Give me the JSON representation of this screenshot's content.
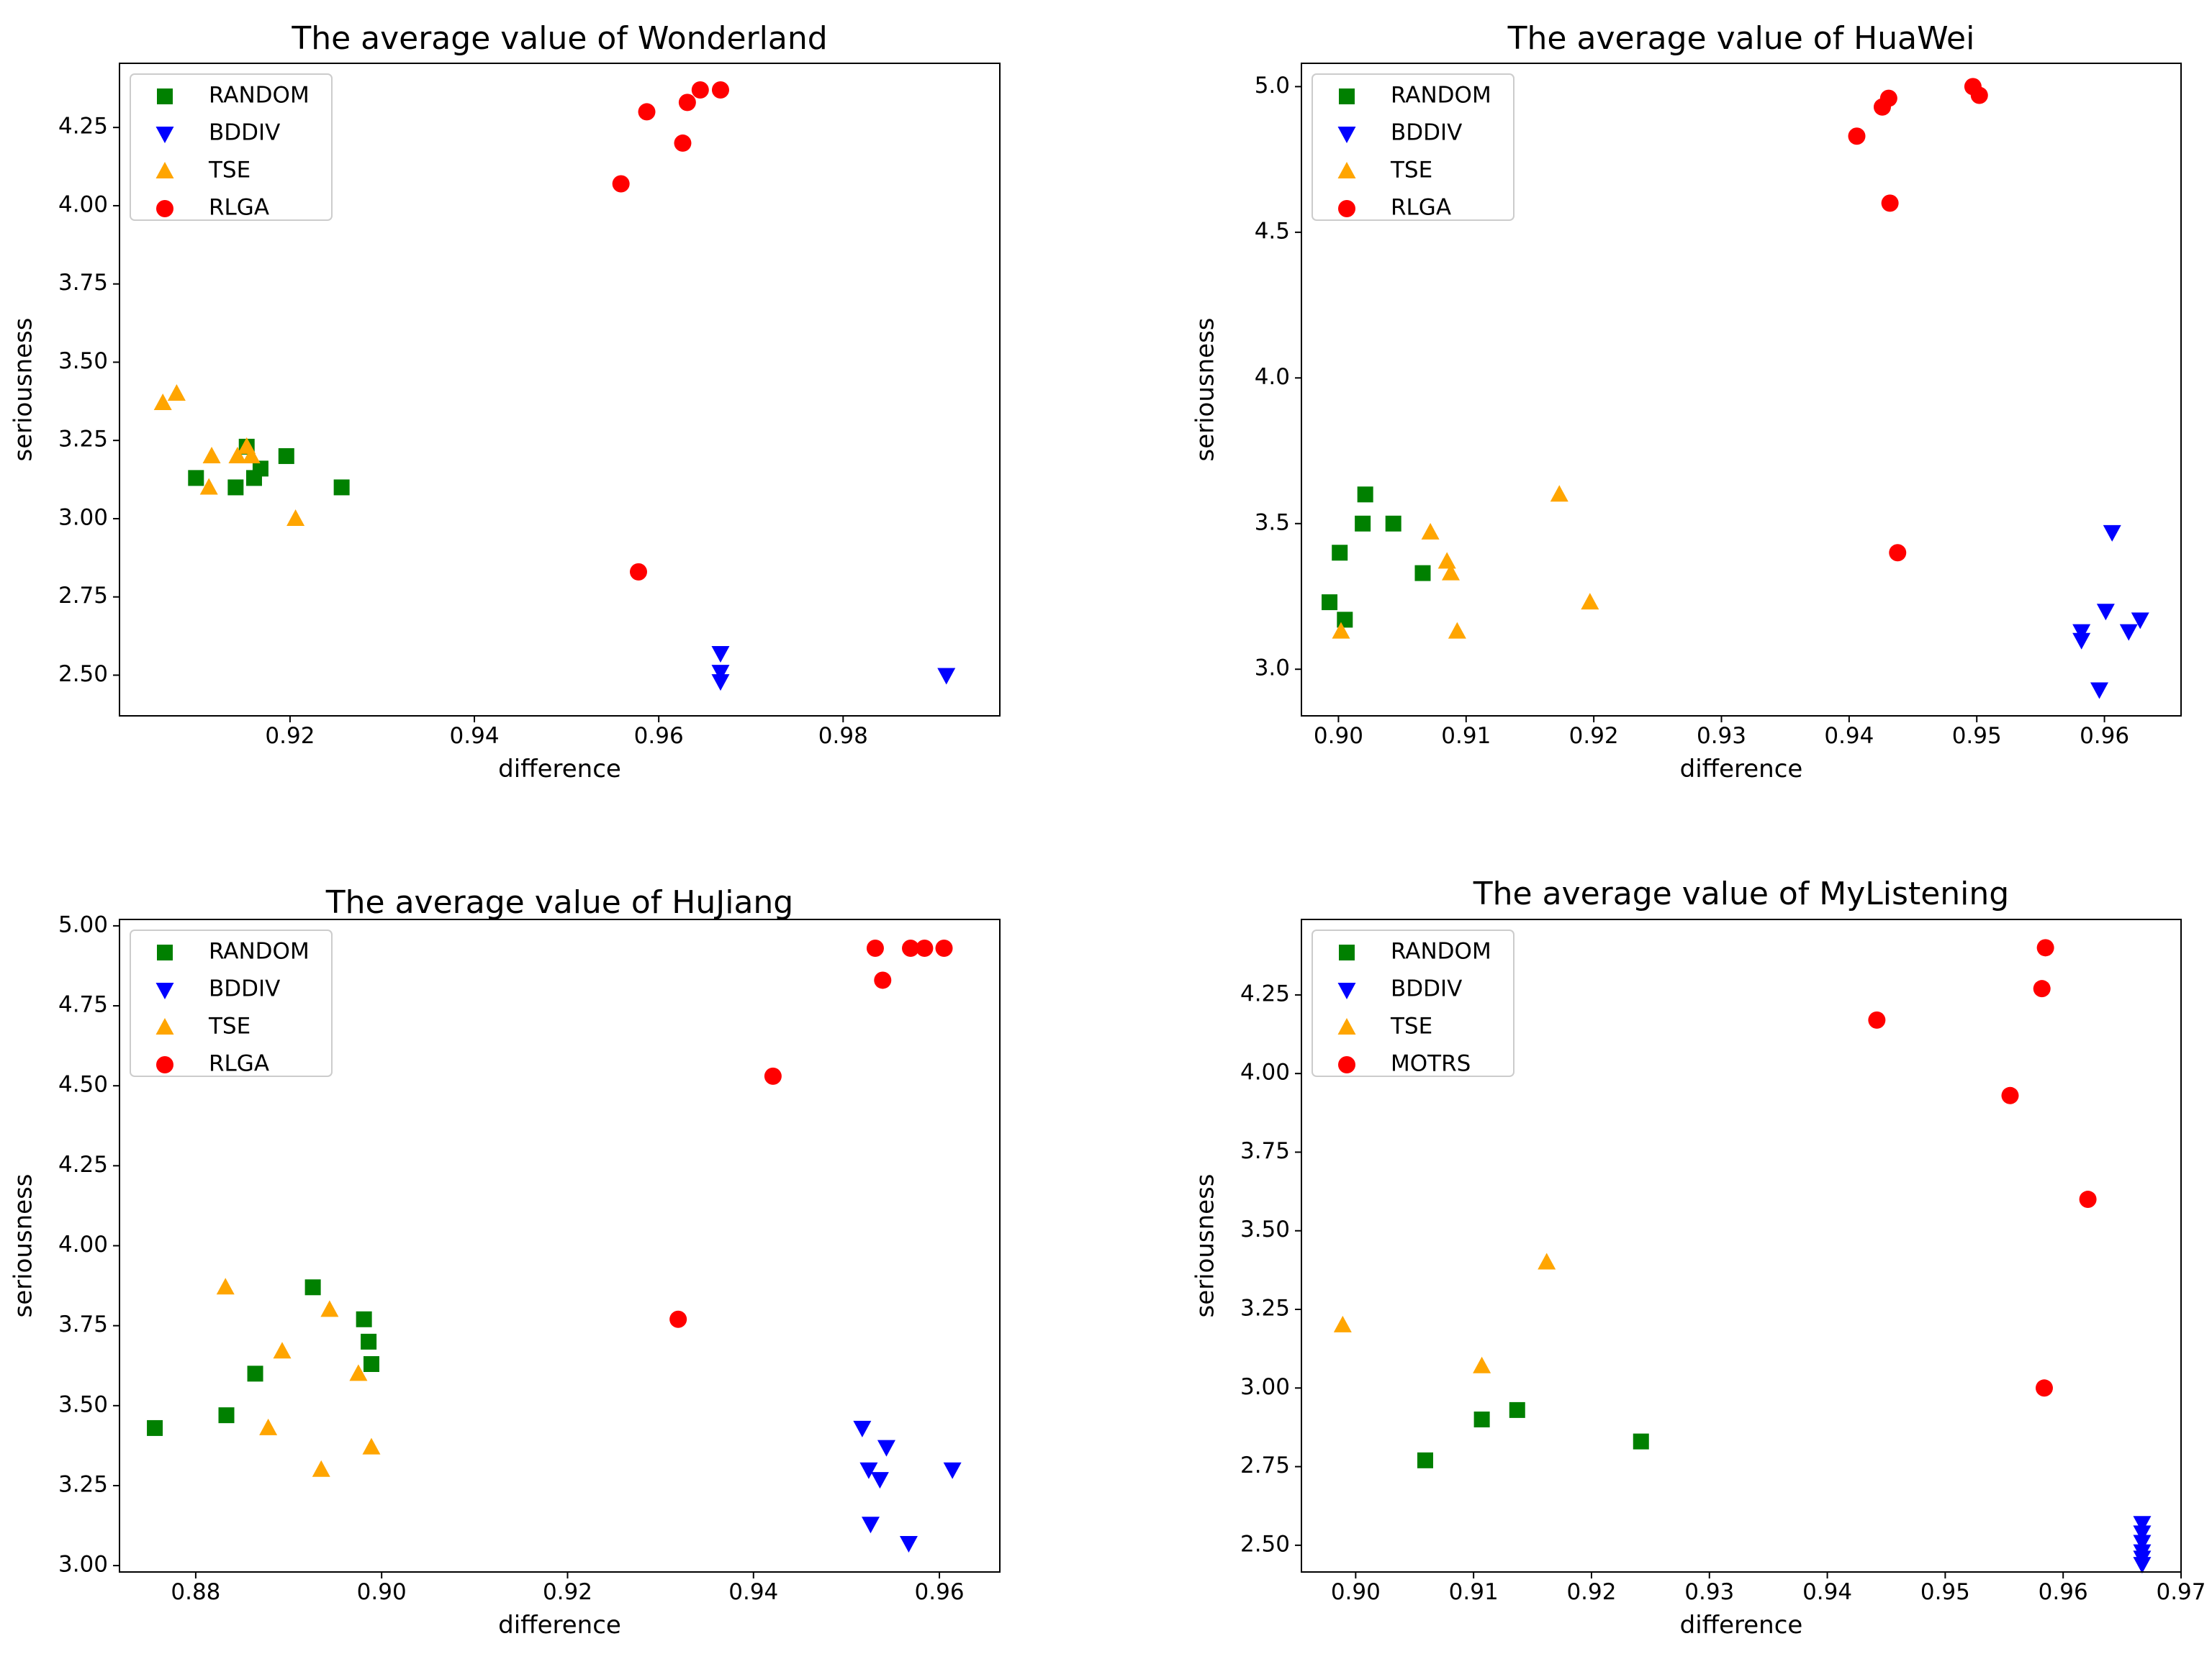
{
  "colors": {
    "RANDOM": "#008000",
    "BDDIV": "#0000ff",
    "TSE": "#ffa500",
    "RLGA": "#ff0000",
    "MOTRS": "#ff0000"
  },
  "chart_data": [
    {
      "type": "scatter",
      "title": "The average value of Wonderland",
      "xlabel": "difference",
      "ylabel": "seriousness",
      "xlim": [
        0.9015,
        0.997
      ],
      "ylim": [
        2.37,
        4.455
      ],
      "xticks": [
        "0.92",
        "0.94",
        "0.96",
        "0.98"
      ],
      "yticks": [
        "2.50",
        "2.75",
        "3.00",
        "3.25",
        "3.50",
        "3.75",
        "4.00",
        "4.25"
      ],
      "legend_position": "top-left",
      "grid": false,
      "series": [
        {
          "name": "RANDOM",
          "marker": "square",
          "x": [
            0.9098,
            0.9141,
            0.9153,
            0.9161,
            0.9168,
            0.9196,
            0.9256
          ],
          "y": [
            3.13,
            3.1,
            3.23,
            3.13,
            3.16,
            3.2,
            3.1
          ]
        },
        {
          "name": "BDDIV",
          "marker": "triangle-down",
          "x": [
            0.9667,
            0.9667,
            0.9667,
            0.9912
          ],
          "y": [
            2.57,
            2.51,
            2.48,
            2.5
          ]
        },
        {
          "name": "TSE",
          "marker": "triangle-up",
          "x": [
            0.9062,
            0.9077,
            0.9112,
            0.9115,
            0.9143,
            0.9153,
            0.9158,
            0.9206
          ],
          "y": [
            3.37,
            3.4,
            3.1,
            3.2,
            3.2,
            3.23,
            3.2,
            3.0
          ]
        },
        {
          "name": "RLGA",
          "marker": "circle",
          "x": [
            0.9559,
            0.9578,
            0.9587,
            0.9626,
            0.9631,
            0.9645,
            0.9667
          ],
          "y": [
            4.07,
            2.83,
            4.3,
            4.2,
            4.33,
            4.37,
            4.37
          ]
        }
      ]
    },
    {
      "type": "scatter",
      "title": "The average value of HuaWei",
      "xlabel": "difference",
      "ylabel": "seriousness",
      "xlim": [
        0.8971,
        0.966
      ],
      "ylim": [
        2.84,
        5.08
      ],
      "xticks": [
        "0.90",
        "0.91",
        "0.92",
        "0.93",
        "0.94",
        "0.95",
        "0.96"
      ],
      "yticks": [
        "3.0",
        "3.5",
        "4.0",
        "4.5",
        "5.0"
      ],
      "legend_position": "top-left",
      "grid": false,
      "series": [
        {
          "name": "RANDOM",
          "marker": "square",
          "x": [
            0.8993,
            0.9001,
            0.9005,
            0.9019,
            0.9021,
            0.9043,
            0.9066
          ],
          "y": [
            3.23,
            3.4,
            3.17,
            3.5,
            3.6,
            3.5,
            3.33
          ]
        },
        {
          "name": "BDDIV",
          "marker": "triangle-down",
          "x": [
            0.9582,
            0.9582,
            0.9596,
            0.9601,
            0.9606,
            0.9619,
            0.9628
          ],
          "y": [
            3.13,
            3.1,
            2.93,
            3.2,
            3.47,
            3.13,
            3.17
          ]
        },
        {
          "name": "TSE",
          "marker": "triangle-up",
          "x": [
            0.9002,
            0.9072,
            0.9085,
            0.9088,
            0.9093,
            0.9173,
            0.9197
          ],
          "y": [
            3.13,
            3.47,
            3.37,
            3.33,
            3.13,
            3.6,
            3.23
          ]
        },
        {
          "name": "RLGA",
          "marker": "circle",
          "x": [
            0.9406,
            0.9426,
            0.9431,
            0.9432,
            0.9438,
            0.9497,
            0.9502
          ],
          "y": [
            4.83,
            4.93,
            4.96,
            4.6,
            3.4,
            5.0,
            4.97
          ]
        }
      ]
    },
    {
      "type": "scatter",
      "title": "The average value of  HuJiang",
      "xlabel": "difference",
      "ylabel": "seriousness",
      "xlim": [
        0.8718,
        0.9665
      ],
      "ylim": [
        2.98,
        5.02
      ],
      "xticks": [
        "0.88",
        "0.90",
        "0.92",
        "0.94",
        "0.96"
      ],
      "yticks": [
        "3.00",
        "3.25",
        "3.50",
        "3.75",
        "4.00",
        "4.25",
        "4.50",
        "4.75",
        "5.00"
      ],
      "legend_position": "top-left",
      "grid": false,
      "series": [
        {
          "name": "RANDOM",
          "marker": "square",
          "x": [
            0.8756,
            0.8833,
            0.8864,
            0.8926,
            0.8981,
            0.8986,
            0.8989
          ],
          "y": [
            3.43,
            3.47,
            3.6,
            3.87,
            3.77,
            3.7,
            3.63
          ]
        },
        {
          "name": "BDDIV",
          "marker": "triangle-down",
          "x": [
            0.9517,
            0.9524,
            0.9526,
            0.9536,
            0.9543,
            0.9567,
            0.9614
          ],
          "y": [
            3.43,
            3.3,
            3.13,
            3.27,
            3.37,
            3.07,
            3.3
          ]
        },
        {
          "name": "TSE",
          "marker": "triangle-up",
          "x": [
            0.8832,
            0.8878,
            0.8893,
            0.8935,
            0.8944,
            0.8975,
            0.8989
          ],
          "y": [
            3.87,
            3.43,
            3.67,
            3.3,
            3.8,
            3.6,
            3.37
          ]
        },
        {
          "name": "RLGA",
          "marker": "circle",
          "x": [
            0.9319,
            0.9421,
            0.9531,
            0.9539,
            0.9569,
            0.9584,
            0.9605
          ],
          "y": [
            3.77,
            4.53,
            4.93,
            4.83,
            4.93,
            4.93,
            4.93
          ]
        }
      ]
    },
    {
      "type": "scatter",
      "title": "The average  value of  MyListening",
      "xlabel": "difference",
      "ylabel": "seriousness",
      "xlim": [
        0.8954,
        0.97
      ],
      "ylim": [
        2.415,
        4.49
      ],
      "xticks": [
        "0.90",
        "0.91",
        "0.92",
        "0.93",
        "0.94",
        "0.95",
        "0.96",
        "0.97"
      ],
      "yticks": [
        "2.50",
        "2.75",
        "3.00",
        "3.25",
        "3.50",
        "3.75",
        "4.00",
        "4.25"
      ],
      "legend_position": "top-left",
      "grid": false,
      "series": [
        {
          "name": "RANDOM",
          "marker": "square",
          "x": [
            0.9059,
            0.9107,
            0.9137,
            0.9242
          ],
          "y": [
            2.77,
            2.9,
            2.93,
            2.83
          ]
        },
        {
          "name": "BDDIV",
          "marker": "triangle-down",
          "x": [
            0.9667,
            0.9667,
            0.9667,
            0.9667,
            0.9667,
            0.9667
          ],
          "y": [
            2.57,
            2.54,
            2.51,
            2.48,
            2.46,
            2.44
          ]
        },
        {
          "name": "TSE",
          "marker": "triangle-up",
          "x": [
            0.8989,
            0.9107,
            0.9162
          ],
          "y": [
            3.2,
            3.07,
            3.4
          ]
        },
        {
          "name": "MOTRS",
          "marker": "circle",
          "x": [
            0.9442,
            0.9555,
            0.9582,
            0.9584,
            0.9585,
            0.9621
          ],
          "y": [
            4.17,
            3.93,
            4.27,
            3.0,
            4.4,
            3.6
          ]
        }
      ]
    }
  ]
}
